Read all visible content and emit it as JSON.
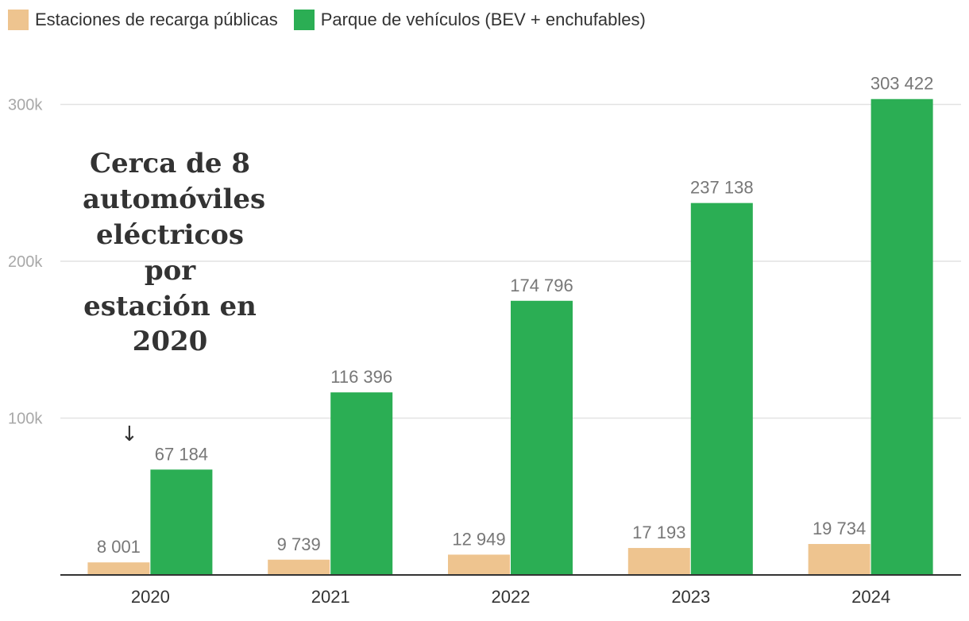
{
  "legend": {
    "stations_label": "Estaciones de recarga públicas",
    "fleet_label": "Parque de vehículos (BEV + enchufables)"
  },
  "colors": {
    "stations": "#EEC48F",
    "fleet": "#2BAE54",
    "grid": "#e2e2e2",
    "axis": "#333333"
  },
  "annotation": {
    "text": "Cerca de 8 automóviles eléctricos por estación en 2020",
    "arrow": "↓"
  },
  "chart_data": {
    "type": "bar",
    "categories": [
      "2020",
      "2021",
      "2022",
      "2023",
      "2024"
    ],
    "series": [
      {
        "name": "Estaciones de recarga públicas",
        "values": [
          8001,
          9739,
          12949,
          17193,
          19734
        ],
        "labels": [
          "8 001",
          "9 739",
          "12 949",
          "17 193",
          "19 734"
        ]
      },
      {
        "name": "Parque de vehículos (BEV + enchufables)",
        "values": [
          67184,
          116396,
          174796,
          237138,
          303422
        ],
        "labels": [
          "67 184",
          "116 396",
          "174 796",
          "237 138",
          "303 422"
        ]
      }
    ],
    "yticks": [
      100000,
      200000,
      300000
    ],
    "ytick_labels": [
      "100k",
      "200k",
      "300k"
    ],
    "ylim": [
      0,
      320000
    ],
    "grid": true,
    "legend_position": "top-left"
  }
}
